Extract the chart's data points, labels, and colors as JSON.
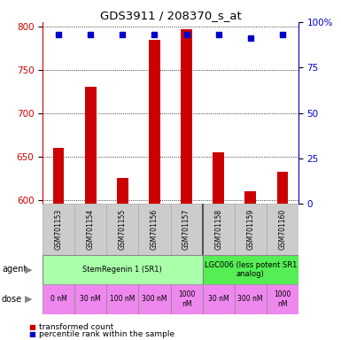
{
  "title": "GDS3911 / 208370_s_at",
  "samples": [
    "GSM701153",
    "GSM701154",
    "GSM701155",
    "GSM701156",
    "GSM701157",
    "GSM701158",
    "GSM701159",
    "GSM701160"
  ],
  "bar_values": [
    660,
    730,
    625,
    785,
    797,
    655,
    610,
    632
  ],
  "percentile_values": [
    93,
    93,
    93,
    93,
    93,
    93,
    91,
    93
  ],
  "ylim_left": [
    595,
    805
  ],
  "ylim_right": [
    0,
    100
  ],
  "yticks_left": [
    600,
    650,
    700,
    750,
    800
  ],
  "yticks_right": [
    0,
    25,
    50,
    75,
    100
  ],
  "bar_color": "#cc0000",
  "percentile_color": "#0000cc",
  "agent_row": [
    {
      "label": "StemRegenin 1 (SR1)",
      "start": 0,
      "end": 5,
      "color": "#aaffaa"
    },
    {
      "label": "LGC006 (less potent SR1\nanalog)",
      "start": 5,
      "end": 8,
      "color": "#55ee55"
    }
  ],
  "dose_labels": [
    "0 nM",
    "30 nM",
    "100 nM",
    "300 nM",
    "1000\nnM",
    "30 nM",
    "300 nM",
    "1000\nnM"
  ],
  "dose_color": "#ee88ee",
  "left_axis_color": "#cc0000",
  "right_axis_color": "#0000cc",
  "legend_bar_label": "transformed count",
  "legend_pct_label": "percentile rank within the sample"
}
